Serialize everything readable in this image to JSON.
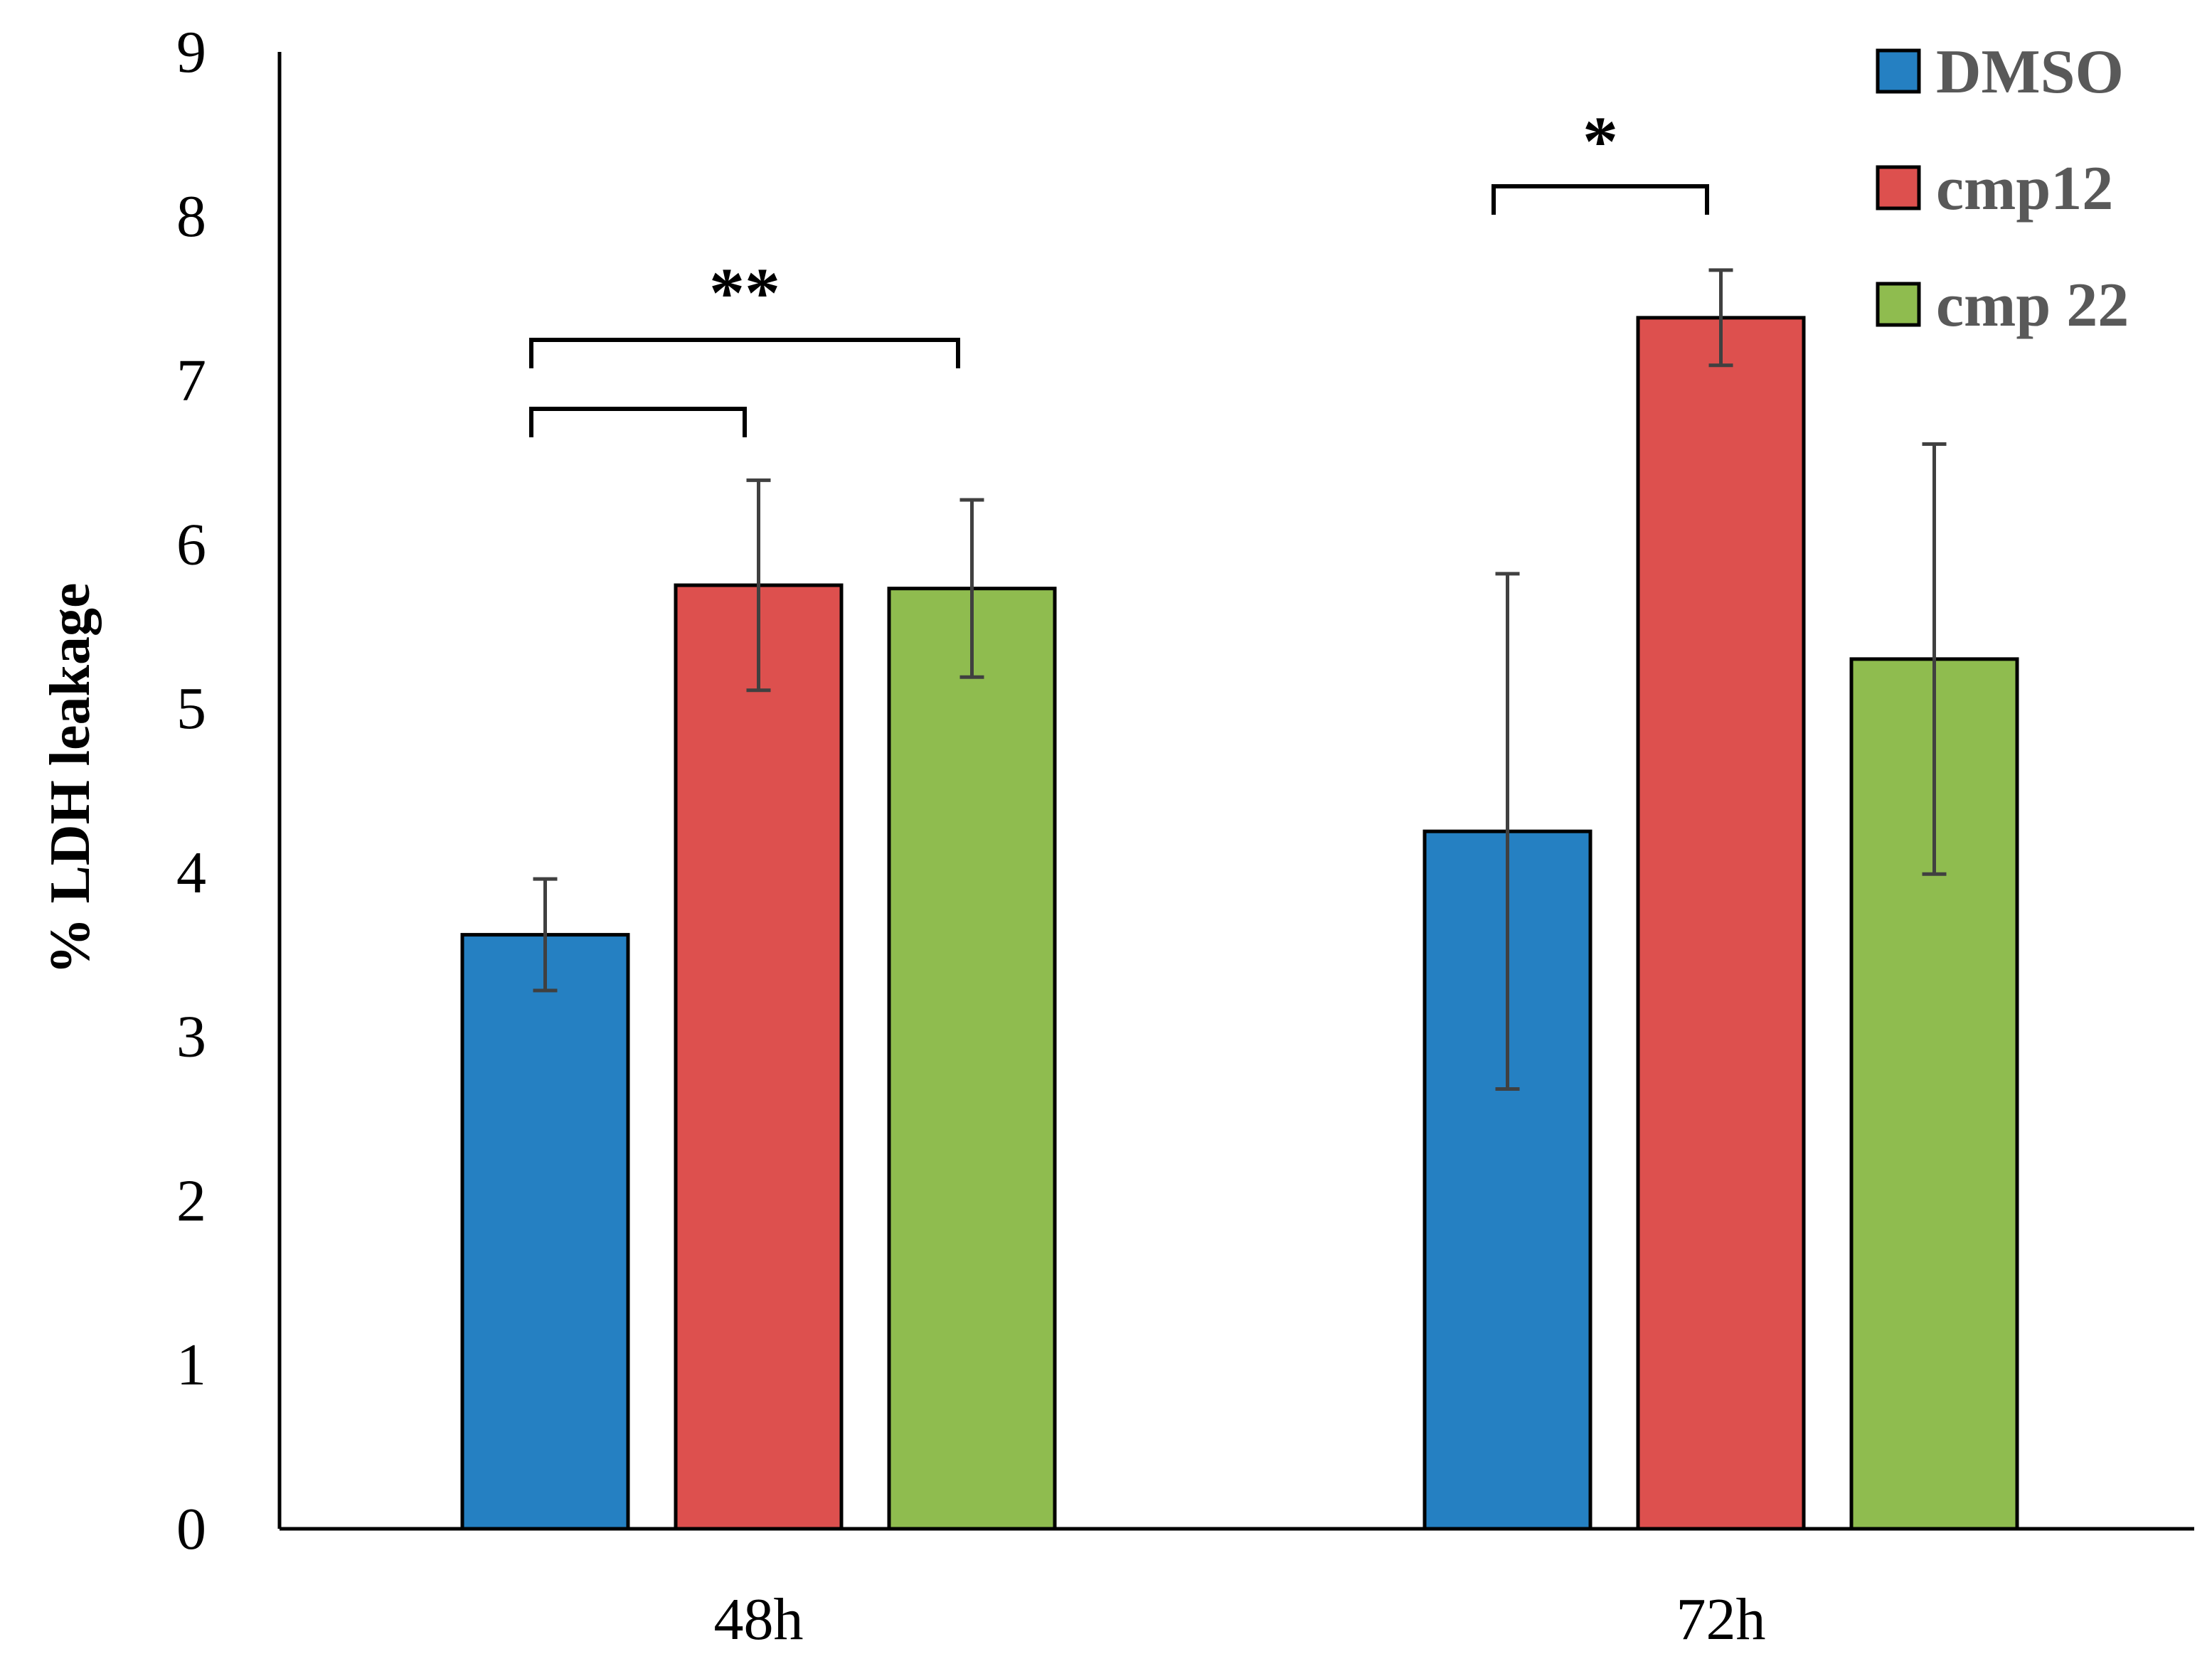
{
  "chart_data": {
    "type": "bar",
    "title": "",
    "xlabel": "",
    "ylabel": "% LDH leakage",
    "ylim": [
      0,
      9
    ],
    "yticks": [
      0,
      1,
      2,
      3,
      4,
      5,
      6,
      7,
      8,
      9
    ],
    "grid": false,
    "legend_position": "top-right",
    "categories": [
      "48h",
      "72h"
    ],
    "series": [
      {
        "name": "DMSO",
        "color": "#2580c2",
        "values": [
          3.62,
          4.25
        ],
        "errors": [
          0.34,
          1.57
        ]
      },
      {
        "name": "cmp12",
        "color": "#dd504e",
        "values": [
          5.75,
          7.38
        ],
        "errors": [
          0.64,
          0.29
        ]
      },
      {
        "name": "cmp 22",
        "color": "#8fbc4f",
        "values": [
          5.73,
          5.3
        ],
        "errors": [
          0.54,
          1.31
        ]
      }
    ],
    "annotations": [
      {
        "category": "48h",
        "from": "DMSO",
        "to": "cmp12",
        "label": ""
      },
      {
        "category": "48h",
        "from": "DMSO",
        "to": "cmp 22",
        "label": "**"
      },
      {
        "category": "72h",
        "from": "DMSO",
        "to": "cmp12",
        "label": "*"
      }
    ]
  }
}
